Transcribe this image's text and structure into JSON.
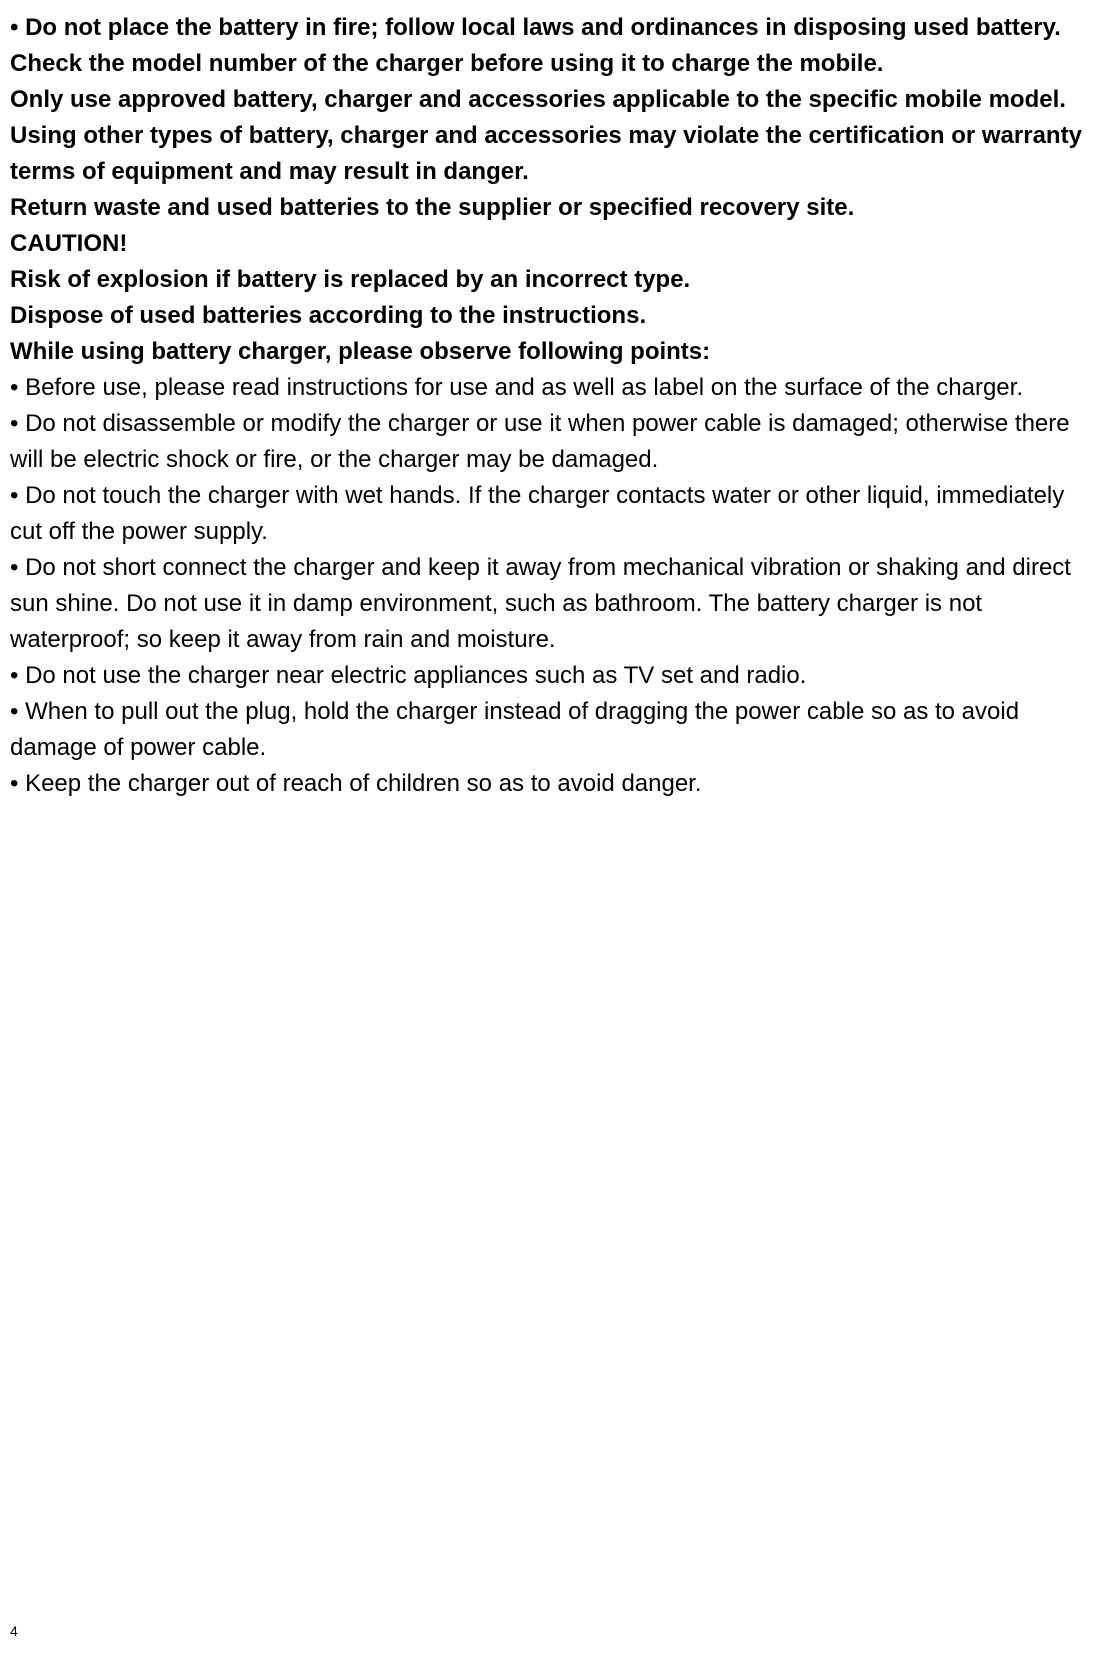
{
  "document": {
    "page_number": "4",
    "background_color": "#ffffff",
    "text_color": "#000000",
    "font_size_body": 24,
    "font_size_pagenum": 14,
    "bold_lines": [
      "• Do not place the battery in fire; follow local laws and ordinances in disposing used battery.",
      " Check the model number of the charger before using it to charge the mobile.",
      "Only use approved battery, charger and accessories applicable to the specific mobile model. Using other types of battery, charger and accessories may violate the certification or warranty terms of equipment and may result in danger.",
      "Return waste and used batteries to the supplier or specified recovery site.",
      "CAUTION!",
      "Risk of explosion if battery is replaced by an incorrect type.",
      "Dispose of used batteries according to the instructions.",
      "While using battery charger, please observe following points:"
    ],
    "regular_lines": [
      "• Before use, please read instructions for use and as well as label on the surface of the charger.",
      "• Do not disassemble or modify the charger or use it when power cable is damaged; otherwise there will be electric shock or fire, or the charger may be damaged.",
      "• Do not touch the charger with wet hands. If the charger contacts water or other liquid, immediately cut off the power supply.",
      "• Do not short connect the charger and keep it away from mechanical vibration or shaking and direct sun shine. Do not use it in damp environment, such as bathroom. The battery charger is not waterproof; so keep it away from rain and moisture.",
      "• Do not use the charger near electric appliances such as TV set and radio.",
      "• When to pull out the plug, hold the charger instead of dragging the power cable so as to avoid damage of power cable.",
      "• Keep the charger out of reach of children so as to avoid danger."
    ]
  }
}
